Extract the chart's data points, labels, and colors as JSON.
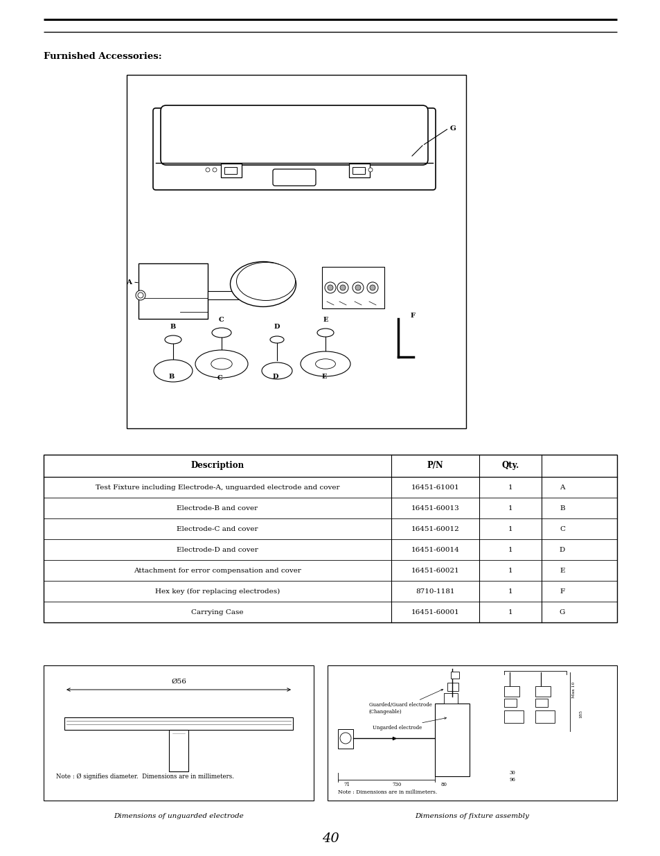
{
  "title": "Furnished Accessories:",
  "table_headers": [
    "Description",
    "P/N",
    "Qty.",
    ""
  ],
  "table_rows": [
    [
      "Test Fixture including Electrode-A, unguarded electrode and cover",
      "16451-61001",
      "1",
      "A"
    ],
    [
      "Electrode-B and cover",
      "16451-60013",
      "1",
      "B"
    ],
    [
      "Electrode-C and cover",
      "16451-60012",
      "1",
      "C"
    ],
    [
      "Electrode-D and cover",
      "16451-60014",
      "1",
      "D"
    ],
    [
      "Attachment for error compensation and cover",
      "16451-60021",
      "1",
      "E"
    ],
    [
      "Hex key (for replacing electrodes)",
      "8710-1181",
      "1",
      "F"
    ],
    [
      "Carrying Case",
      "16451-60001",
      "1",
      "G"
    ]
  ],
  "left_box_caption": "Dimensions of unguarded electrode",
  "right_box_caption": "Dimensions of fixture assembly",
  "left_box_note": "Note : Ø signifies diameter.  Dimensions are in millimeters.",
  "right_box_note": "Note : Dimensions are in millimeters.",
  "dim_label": "Ø56",
  "page_number": "40",
  "bg_color": "#ffffff",
  "line_color": "#000000"
}
